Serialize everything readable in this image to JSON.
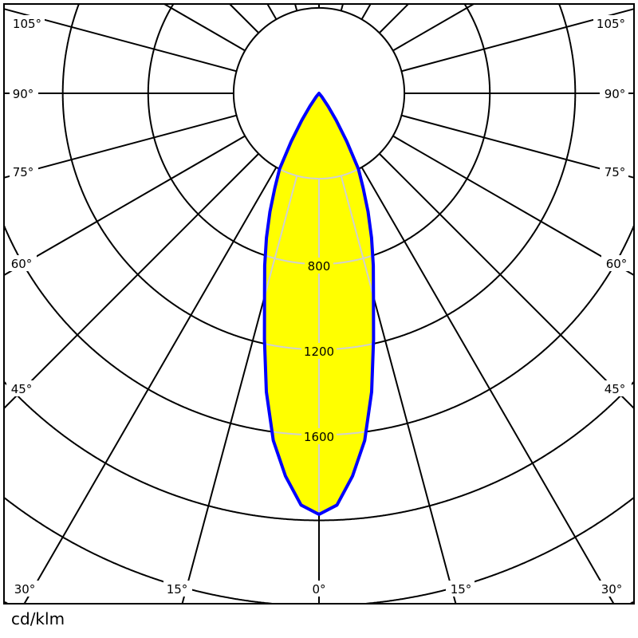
{
  "chart_data": {
    "type": "polar",
    "unit_label": "cd/klm",
    "radial_ticks": [
      400,
      800,
      1200,
      1600,
      2000,
      2400,
      2800
    ],
    "radial_tick_labels": [
      "800",
      "1200",
      "1600"
    ],
    "angle_step_deg": 15,
    "angle_labels": [
      "105°",
      "90°",
      "75°",
      "60°",
      "45°",
      "30°",
      "15°",
      "0°"
    ],
    "series": [
      {
        "symmetric": true,
        "angles_deg": [
          0,
          2.5,
          5,
          7.5,
          10,
          12.5,
          15,
          17.5,
          20,
          22.5,
          25,
          27.5,
          30,
          32.5,
          35,
          40,
          45,
          90
        ],
        "values": [
          1972,
          1930,
          1800,
          1640,
          1420,
          1180,
          985,
          846,
          720,
          600,
          490,
          400,
          260,
          150,
          75,
          20,
          0,
          0
        ]
      }
    ],
    "colors": {
      "fill": "#ffff00",
      "outline": "#0000ff",
      "grid": "#000000",
      "grid_inside": "#d0d0d0"
    }
  }
}
